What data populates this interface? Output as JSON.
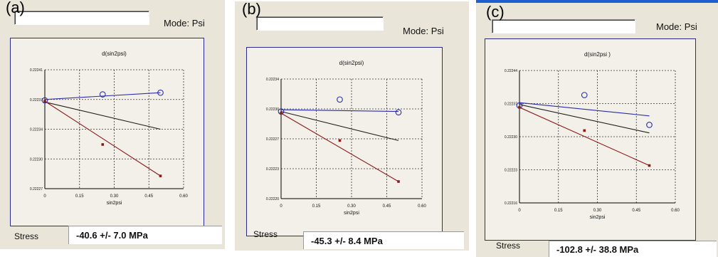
{
  "mode_label": "Mode: Psi",
  "stress_label": "Stress",
  "panels": [
    {
      "label": "(a)",
      "stress_value": "-40.6  +/-  7.0 MPa",
      "chart_data": {
        "type": "scatter",
        "title": "d(sin2psi)",
        "xlabel": "sin2psi",
        "x_ticks": [
          "0",
          "0.15",
          "0.30",
          "0.45",
          "0.60"
        ],
        "y_ticks": [
          "0.22241",
          "0.22237",
          "0.22234",
          "0.22230",
          "0.22227"
        ],
        "xlim": [
          0,
          0.6
        ],
        "ylim": [
          0.22227,
          0.22241
        ],
        "grid": true,
        "series": [
          {
            "color": "#2b2bb0",
            "marker": "open-circle",
            "points": [
              [
                0,
                0.222374
              ],
              [
                0.25,
                0.222381
              ],
              [
                0.5,
                0.222383
              ]
            ],
            "fit": [
              [
                0,
                0.222375
              ],
              [
                0.5,
                0.222383
              ]
            ]
          },
          {
            "color": "#202020",
            "marker": "none",
            "points": [],
            "fit": [
              [
                0,
                0.222372
              ],
              [
                0.5,
                0.22234
              ]
            ]
          },
          {
            "color": "#8b1a1a",
            "marker": "filled-square",
            "points": [
              [
                0,
                0.222373
              ],
              [
                0.25,
                0.222322
              ],
              [
                0.5,
                0.222285
              ]
            ],
            "fit": [
              [
                0,
                0.222373
              ],
              [
                0.5,
                0.222285
              ]
            ]
          }
        ]
      }
    },
    {
      "label": "(b)",
      "stress_value": "-45.3  +/-  8.4 MPa",
      "chart_data": {
        "type": "scatter",
        "title": "d(sin2psi)",
        "xlabel": "sin2psi",
        "x_ticks": [
          "0",
          "0.15",
          "0.30",
          "0.45",
          "0.60"
        ],
        "y_ticks": [
          "0.22234",
          "0.22230",
          "0.22227",
          "0.22223",
          "0.22220"
        ],
        "xlim": [
          0,
          0.6
        ],
        "ylim": [
          0.2222,
          0.22234
        ],
        "grid": true,
        "series": [
          {
            "color": "#2b2bb0",
            "marker": "open-circle",
            "points": [
              [
                0,
                0.222302
              ],
              [
                0.25,
                0.222316
              ],
              [
                0.5,
                0.222301
              ]
            ],
            "fit": [
              [
                0,
                0.222304
              ],
              [
                0.5,
                0.222302
              ]
            ]
          },
          {
            "color": "#202020",
            "marker": "none",
            "points": [],
            "fit": [
              [
                0,
                0.222302
              ],
              [
                0.5,
                0.222268
              ]
            ]
          },
          {
            "color": "#8b1a1a",
            "marker": "filled-square",
            "points": [
              [
                0,
                0.2223
              ],
              [
                0.25,
                0.222268
              ],
              [
                0.5,
                0.22222
              ]
            ],
            "fit": [
              [
                0,
                0.2223
              ],
              [
                0.5,
                0.22222
              ]
            ]
          }
        ]
      }
    },
    {
      "label": "(c)",
      "stress_value": "-102.8  +/-  38.8 MPa",
      "chart_data": {
        "type": "scatter",
        "title": "d(sin2psi )",
        "xlabel": "sin2psi",
        "x_ticks": [
          "0",
          "0.15",
          "0.30",
          "0.45",
          "0.60"
        ],
        "y_ticks": [
          "0.22244",
          "0.22237",
          "0.22230",
          "0.22223",
          "0.22216"
        ],
        "xlim": [
          0,
          0.6
        ],
        "ylim": [
          0.22216,
          0.22244
        ],
        "grid": true,
        "series": [
          {
            "color": "#2b2bb0",
            "marker": "open-circle",
            "points": [
              [
                0,
                0.222366
              ],
              [
                0.25,
                0.222388
              ],
              [
                0.5,
                0.222325
              ]
            ],
            "fit": [
              [
                0,
                0.222372
              ],
              [
                0.5,
                0.222344
              ]
            ]
          },
          {
            "color": "#202020",
            "marker": "none",
            "points": [],
            "fit": [
              [
                0,
                0.222368
              ],
              [
                0.5,
                0.222308
              ]
            ]
          },
          {
            "color": "#8b1a1a",
            "marker": "filled-square",
            "points": [
              [
                0,
                0.222362
              ],
              [
                0.25,
                0.222313
              ],
              [
                0.5,
                0.222239
              ]
            ],
            "fit": [
              [
                0,
                0.222362
              ],
              [
                0.5,
                0.222239
              ]
            ]
          }
        ]
      }
    }
  ]
}
